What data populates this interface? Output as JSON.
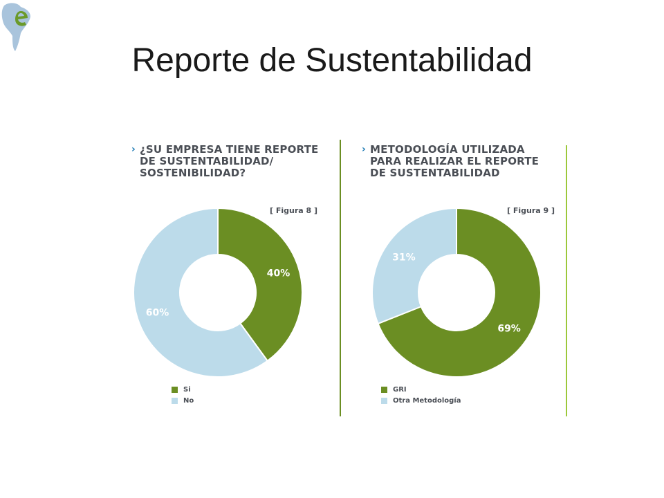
{
  "slide": {
    "title": "Reporte de Sustentabilidad"
  },
  "colors": {
    "green": "#6b8e23",
    "light_blue": "#bcdbea",
    "divider": "#6b8e23",
    "accent_line": "#9cc83a",
    "arrow": "#1d7bb5"
  },
  "chart_data": [
    {
      "type": "pie",
      "title_lines": [
        "¿SU EMPRESA TIENE REPORTE",
        "DE SUSTENTABILIDAD/",
        "SOSTENIBILIDAD?"
      ],
      "figure_label": "[ Figura 8 ]",
      "categories": [
        "Si",
        "No"
      ],
      "values": [
        40,
        60
      ],
      "value_labels": [
        "40%",
        "60%"
      ],
      "colors": [
        "#6b8e23",
        "#bcdbea"
      ],
      "legend": "bottom-left"
    },
    {
      "type": "pie",
      "title_lines": [
        "METODOLOGÍA UTILIZADA",
        "PARA REALIZAR EL REPORTE",
        "DE SUSTENTABILIDAD"
      ],
      "figure_label": "[ Figura 9 ]",
      "categories": [
        "GRI",
        "Otra Metodología"
      ],
      "values": [
        69,
        31
      ],
      "value_labels": [
        "69%",
        "31%"
      ],
      "colors": [
        "#6b8e23",
        "#bcdbea"
      ],
      "legend": "bottom-left"
    }
  ]
}
